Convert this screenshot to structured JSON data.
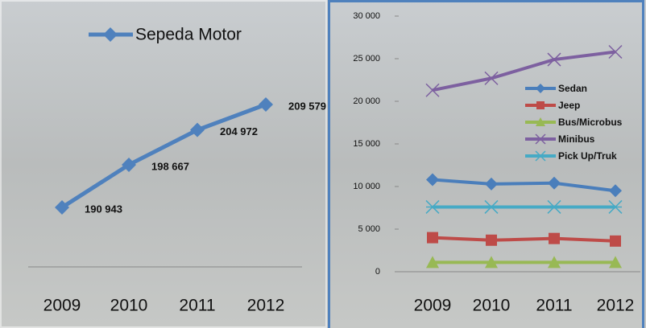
{
  "chart_data": [
    {
      "type": "line",
      "categories": [
        "2009",
        "2010",
        "2011",
        "2012"
      ],
      "series": [
        {
          "name": "Sepeda Motor",
          "color": "#4f81bd",
          "marker": "diamond",
          "values": [
            190943,
            198667,
            204972,
            209579
          ],
          "value_labels": [
            "190 943",
            "198 667",
            "204 972",
            "209 579"
          ]
        }
      ]
    },
    {
      "type": "line",
      "categories": [
        "2009",
        "2010",
        "2011",
        "2012"
      ],
      "ylim": [
        0,
        30000
      ],
      "yticks": [
        {
          "value": 0,
          "label": "0"
        },
        {
          "value": 5000,
          "label": "5 000"
        },
        {
          "value": 10000,
          "label": "10 000"
        },
        {
          "value": 15000,
          "label": "15 000"
        },
        {
          "value": 20000,
          "label": "20 000"
        },
        {
          "value": 25000,
          "label": "25 000"
        },
        {
          "value": 30000,
          "label": "30 000"
        }
      ],
      "series": [
        {
          "name": "Sedan",
          "color": "#4a7ebb",
          "marker": "diamond",
          "values": [
            10800,
            10300,
            10400,
            9500
          ]
        },
        {
          "name": "Jeep",
          "color": "#be4b48",
          "marker": "square",
          "values": [
            4000,
            3700,
            3900,
            3600
          ]
        },
        {
          "name": "Bus/Microbus",
          "color": "#98b954",
          "marker": "triangle",
          "values": [
            1100,
            1100,
            1100,
            1100
          ]
        },
        {
          "name": "Minibus",
          "color": "#7d60a0",
          "marker": "x",
          "values": [
            21300,
            22700,
            24900,
            25800
          ]
        },
        {
          "name": "Pick Up/Truk",
          "color": "#46aac5",
          "marker": "star",
          "values": [
            7600,
            7600,
            7600,
            7600
          ]
        }
      ]
    }
  ]
}
